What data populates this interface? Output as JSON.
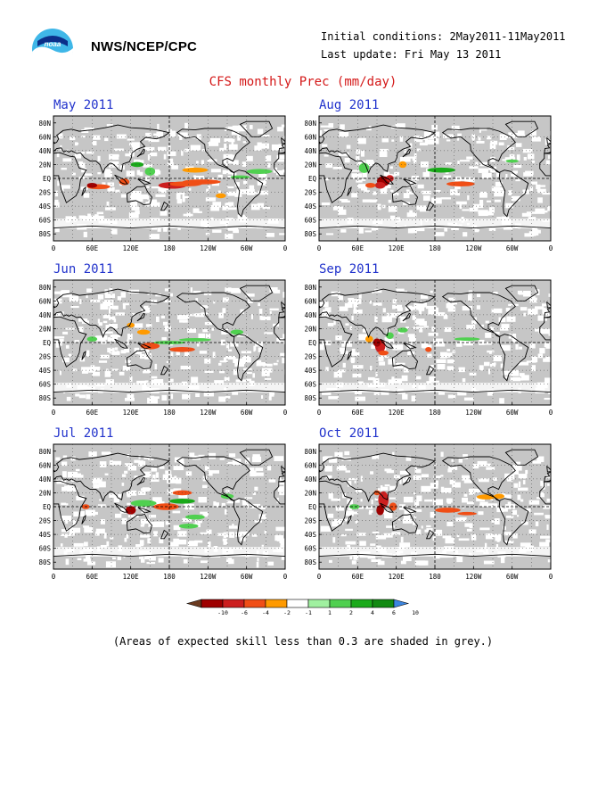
{
  "header": {
    "org": "NWS/NCEP/CPC",
    "initial_conditions": "Initial conditions: 2May2011-11May2011",
    "last_update": "Last update: Fri May 13 2011",
    "title": "CFS monthly Prec (mm/day)"
  },
  "axes": {
    "lat_labels": [
      "80N",
      "60N",
      "40N",
      "20N",
      "EQ",
      "20S",
      "40S",
      "60S",
      "80S"
    ],
    "lon_labels": [
      "0",
      "60E",
      "120E",
      "180",
      "120W",
      "60W",
      "0"
    ]
  },
  "panels": [
    {
      "label": "May 2011"
    },
    {
      "label": "Aug 2011"
    },
    {
      "label": "Jun 2011"
    },
    {
      "label": "Sep 2011"
    },
    {
      "label": "Jul 2011"
    },
    {
      "label": "Oct 2011"
    }
  ],
  "colorbar": {
    "labels": [
      "-10",
      "-6",
      "-4",
      "-2",
      "-1",
      "1",
      "2",
      "4",
      "6",
      "10"
    ],
    "colors": [
      "#6b3a1f",
      "#9e0000",
      "#cc1f1f",
      "#f04e16",
      "#ff9a00",
      "#ffffff",
      "#a0f0a0",
      "#50d050",
      "#1aaa1a",
      "#118a11",
      "#3c86e0"
    ]
  },
  "footer_note": "(Areas of expected skill less than 0.3 are shaded in grey.)"
}
